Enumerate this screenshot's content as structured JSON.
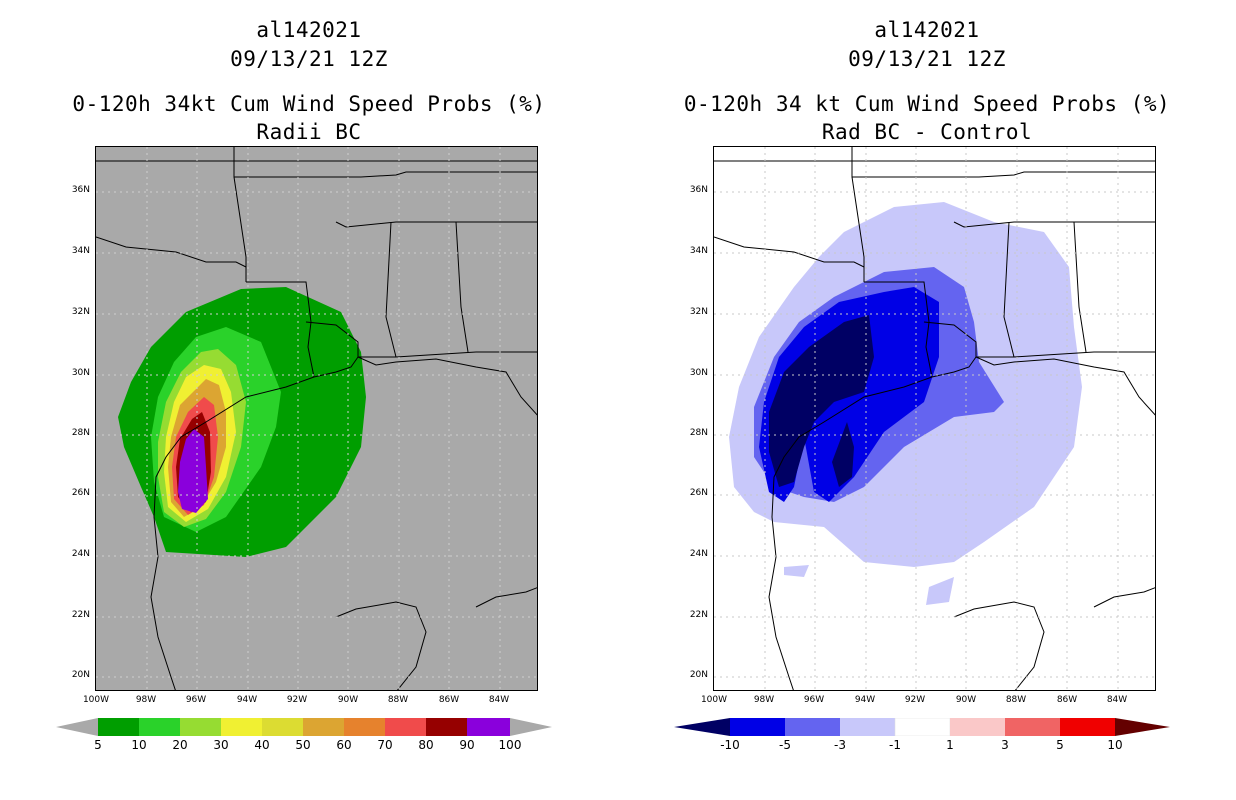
{
  "left_panel": {
    "title_storm": "al142021",
    "title_date": "09/13/21 12Z",
    "title_product": "0-120h 34kt Cum Wind Speed Probs (%)",
    "title_sub": "Radii BC",
    "colorbar": {
      "labels": [
        "5",
        "10",
        "20",
        "30",
        "40",
        "50",
        "60",
        "70",
        "80",
        "90",
        "100"
      ],
      "colors": [
        "#009e00",
        "#2ad22a",
        "#96dc32",
        "#f0f032",
        "#dcdc32",
        "#dca532",
        "#e6822d",
        "#f04b4b",
        "#960000",
        "#8a00dc"
      ],
      "under_color": "#a9a9a9",
      "over_color": "#a9a9a9"
    }
  },
  "right_panel": {
    "title_storm": "al142021",
    "title_date": "09/13/21 12Z",
    "title_product": "0-120h 34 kt Cum Wind Speed Probs (%)",
    "title_sub": "Rad BC - Control",
    "colorbar": {
      "labels": [
        "-10",
        "-5",
        "-3",
        "-1",
        "1",
        "3",
        "5",
        "10"
      ],
      "colors": [
        "#0000e6",
        "#6464f0",
        "#c8c8fa",
        "#ffffff",
        "#fac8c8",
        "#f06464",
        "#f00000"
      ],
      "under_color": "#000064",
      "over_color": "#640000"
    }
  },
  "axes": {
    "lat_labels": [
      "36N",
      "34N",
      "32N",
      "30N",
      "28N",
      "26N",
      "24N",
      "22N",
      "20N"
    ],
    "lon_labels": [
      "100W",
      "98W",
      "96W",
      "94W",
      "92W",
      "90W",
      "88W",
      "86W",
      "84W"
    ]
  },
  "map_colors": {
    "left_background": "#a9a9a9",
    "right_background": "#ffffff",
    "diff_light": "#c8c8fa",
    "diff_mid": "#6464f0",
    "diff_strong": "#0000e6",
    "diff_extreme": "#000064"
  }
}
